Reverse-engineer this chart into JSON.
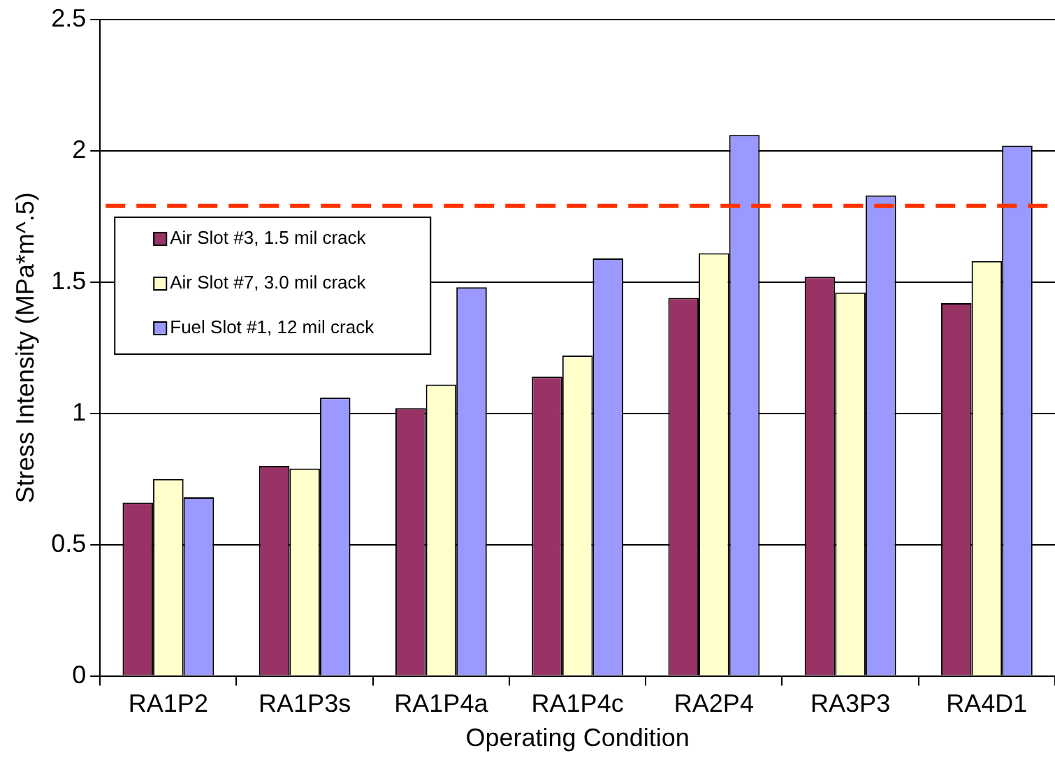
{
  "chart_data": {
    "type": "bar",
    "xlabel": "Operating Condition",
    "ylabel": "Stress Intensity (MPa*m^.5)",
    "categories": [
      "RA1P2",
      "RA1P3s",
      "RA1P4a",
      "RA1P4c",
      "RA2P4",
      "RA3P3",
      "RA4D1"
    ],
    "series": [
      {
        "name": "Air Slot #3, 1.5 mil crack",
        "color": "#993366",
        "values": [
          0.66,
          0.8,
          1.02,
          1.14,
          1.44,
          1.52,
          1.42
        ]
      },
      {
        "name": "Air Slot #7, 3.0 mil crack",
        "color": "#ffffcc",
        "values": [
          0.75,
          0.79,
          1.11,
          1.22,
          1.61,
          1.46,
          1.58
        ]
      },
      {
        "name": "Fuel Slot #1, 12 mil crack",
        "color": "#9999ff",
        "values": [
          0.68,
          1.06,
          1.48,
          1.59,
          2.06,
          1.83,
          2.02
        ]
      }
    ],
    "ylim": [
      0,
      2.5
    ],
    "yticks": [
      0,
      0.5,
      1,
      1.5,
      2,
      2.5
    ],
    "grid": "y",
    "legend": "top left",
    "ref_lines": [
      {
        "axis": "y",
        "value": 1.79,
        "color": "#ff3300",
        "line_style": "dashed"
      }
    ]
  }
}
